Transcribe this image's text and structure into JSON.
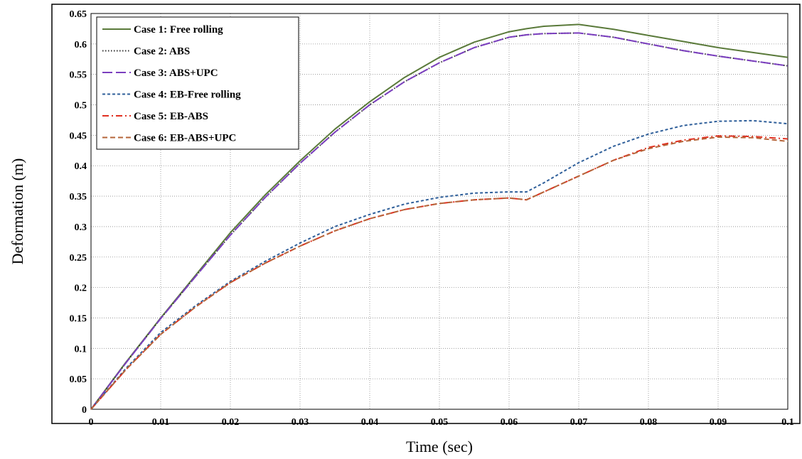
{
  "chart_data": {
    "type": "line",
    "title": "",
    "xlabel": "Time (sec)",
    "ylabel": "Deformation (m)",
    "xlim": [
      0,
      0.1
    ],
    "ylim": [
      0,
      0.65
    ],
    "x_ticks": [
      "0",
      "0.01",
      "0.02",
      "0.03",
      "0.04",
      "0.05",
      "0.06",
      "0.07",
      "0.08",
      "0.09",
      "0.1"
    ],
    "y_ticks": [
      "0",
      "0.05",
      "0.1",
      "0.15",
      "0.2",
      "0.25",
      "0.3",
      "0.35",
      "0.4",
      "0.45",
      "0.5",
      "0.55",
      "0.6",
      "0.65"
    ],
    "grid": true,
    "legend_position": "top-left",
    "x": [
      0,
      0.005,
      0.01,
      0.015,
      0.02,
      0.025,
      0.03,
      0.035,
      0.04,
      0.045,
      0.05,
      0.055,
      0.06,
      0.0625,
      0.065,
      0.07,
      0.075,
      0.08,
      0.085,
      0.09,
      0.095,
      0.1
    ],
    "series": [
      {
        "name": "Case 1: Free rolling",
        "color": "#5a7a3a",
        "dash": "solid",
        "values": [
          0,
          0.077,
          0.15,
          0.22,
          0.29,
          0.352,
          0.408,
          0.46,
          0.505,
          0.545,
          0.578,
          0.603,
          0.62,
          0.625,
          0.629,
          0.632,
          0.624,
          0.614,
          0.604,
          0.594,
          0.586,
          0.578
        ]
      },
      {
        "name": "Case 2: ABS",
        "color": "#333333",
        "dash": "dotted",
        "values": [
          0,
          0.076,
          0.149,
          0.218,
          0.286,
          0.348,
          0.404,
          0.455,
          0.5,
          0.538,
          0.569,
          0.594,
          0.611,
          0.615,
          0.617,
          0.618,
          0.611,
          0.6,
          0.589,
          0.58,
          0.572,
          0.564
        ]
      },
      {
        "name": "Case 3: ABS+UPC",
        "color": "#7b3fbf",
        "dash": "longdash",
        "values": [
          0,
          0.076,
          0.149,
          0.218,
          0.286,
          0.348,
          0.404,
          0.455,
          0.5,
          0.538,
          0.569,
          0.594,
          0.611,
          0.615,
          0.617,
          0.618,
          0.611,
          0.6,
          0.589,
          0.58,
          0.572,
          0.564
        ]
      },
      {
        "name": "Case 4: EB-Free rolling",
        "color": "#2f5f9a",
        "dash": "shortdash",
        "values": [
          0,
          0.067,
          0.126,
          0.17,
          0.21,
          0.243,
          0.273,
          0.3,
          0.32,
          0.337,
          0.348,
          0.355,
          0.357,
          0.357,
          0.372,
          0.405,
          0.432,
          0.452,
          0.466,
          0.473,
          0.474,
          0.469
        ]
      },
      {
        "name": "Case 5: EB-ABS",
        "color": "#e03020",
        "dash": "dashdot",
        "values": [
          0,
          0.065,
          0.123,
          0.168,
          0.208,
          0.24,
          0.268,
          0.293,
          0.313,
          0.328,
          0.338,
          0.344,
          0.347,
          0.344,
          0.357,
          0.383,
          0.409,
          0.43,
          0.442,
          0.449,
          0.448,
          0.444
        ]
      },
      {
        "name": "Case 6: EB-ABS+UPC",
        "color": "#b5653a",
        "dash": "dash",
        "values": [
          0,
          0.065,
          0.123,
          0.168,
          0.208,
          0.24,
          0.268,
          0.293,
          0.313,
          0.328,
          0.338,
          0.344,
          0.347,
          0.344,
          0.357,
          0.383,
          0.409,
          0.428,
          0.44,
          0.447,
          0.446,
          0.44
        ]
      }
    ]
  }
}
